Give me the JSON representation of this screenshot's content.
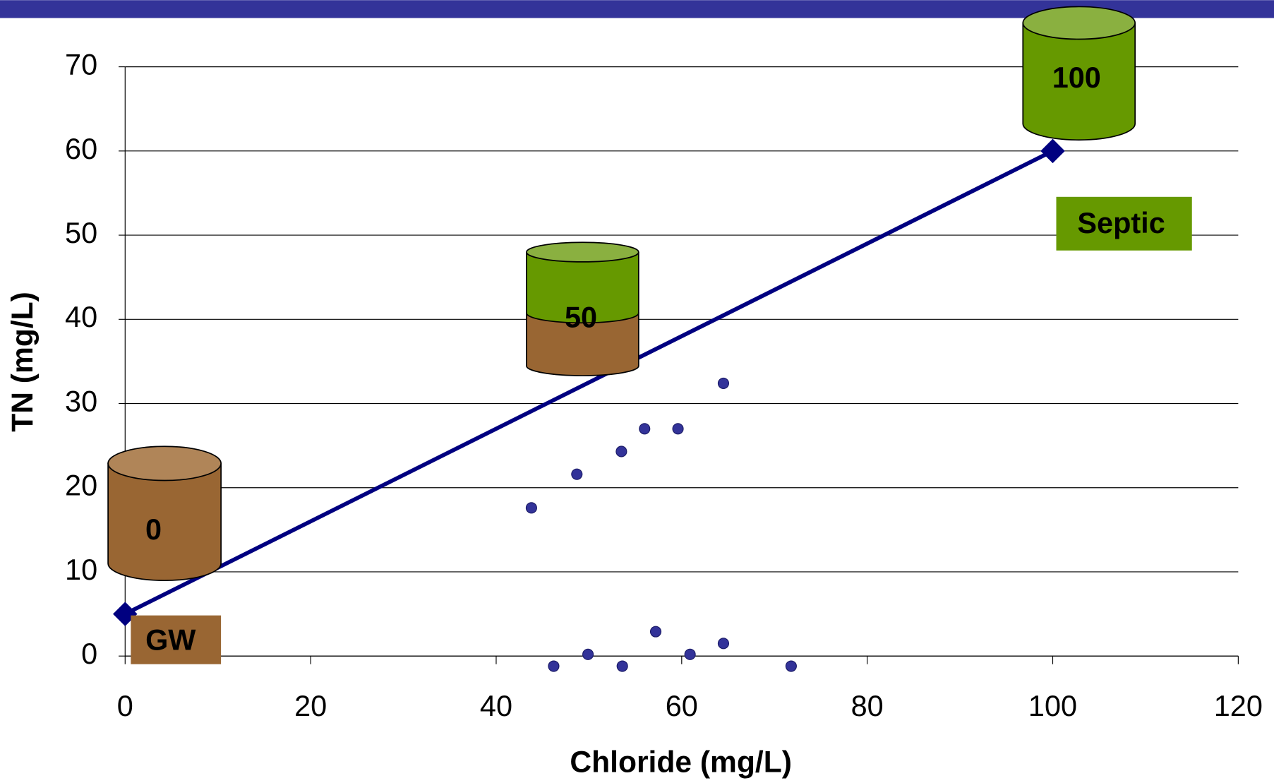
{
  "chart_data": {
    "type": "scatter",
    "xlabel": "Chloride (mg/L)",
    "ylabel": "TN (mg/L)",
    "xlim": [
      0,
      120
    ],
    "ylim": [
      0,
      70
    ],
    "xticks": [
      0,
      20,
      40,
      60,
      80,
      100,
      120
    ],
    "yticks": [
      0,
      10,
      20,
      30,
      40,
      50,
      60,
      70
    ],
    "grid": true,
    "series": [
      {
        "mode": "markers",
        "color": "#333399",
        "x": [
          43.8,
          48.7,
          53.5,
          56.0,
          59.6,
          64.5,
          46.2,
          49.9,
          53.6,
          57.2,
          60.9,
          64.5,
          71.8
        ],
        "values": [
          17.6,
          21.6,
          24.3,
          27.0,
          27.0,
          32.4,
          -1.2,
          0.2,
          -1.2,
          2.9,
          0.2,
          1.5,
          -1.2
        ]
      },
      {
        "mode": "line",
        "color": "#000080",
        "x": [
          0,
          100
        ],
        "values": [
          5,
          60
        ]
      }
    ],
    "annotations": [
      "0",
      "50",
      "100",
      "GW",
      "Septic"
    ]
  }
}
